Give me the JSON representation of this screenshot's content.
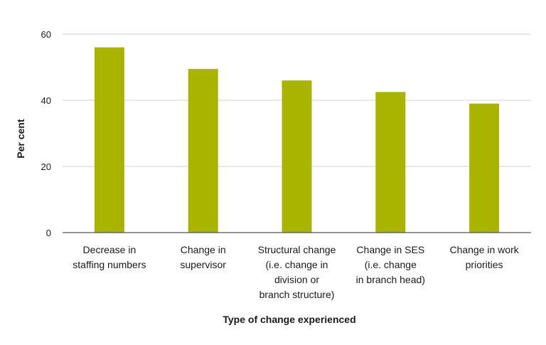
{
  "chart_data": {
    "type": "bar",
    "categories": [
      [
        "Decrease in",
        "staffing numbers"
      ],
      [
        "Change in",
        "supervisor"
      ],
      [
        "Structural change",
        "(i.e. change in",
        "division or",
        "branch structure)"
      ],
      [
        "Change in SES",
        "(i.e. change",
        "in branch head)"
      ],
      [
        "Change in work",
        "priorities"
      ]
    ],
    "values": [
      56,
      49.5,
      46,
      42.5,
      39
    ],
    "title": "",
    "xlabel": "Type of change experienced",
    "ylabel": "Per cent",
    "ylim": [
      0,
      60
    ],
    "yticks": [
      0,
      20,
      40,
      60
    ],
    "grid": true,
    "bar_color": "#a8b400",
    "grid_color": "#d0d0d0",
    "axis_color": "#555555"
  }
}
